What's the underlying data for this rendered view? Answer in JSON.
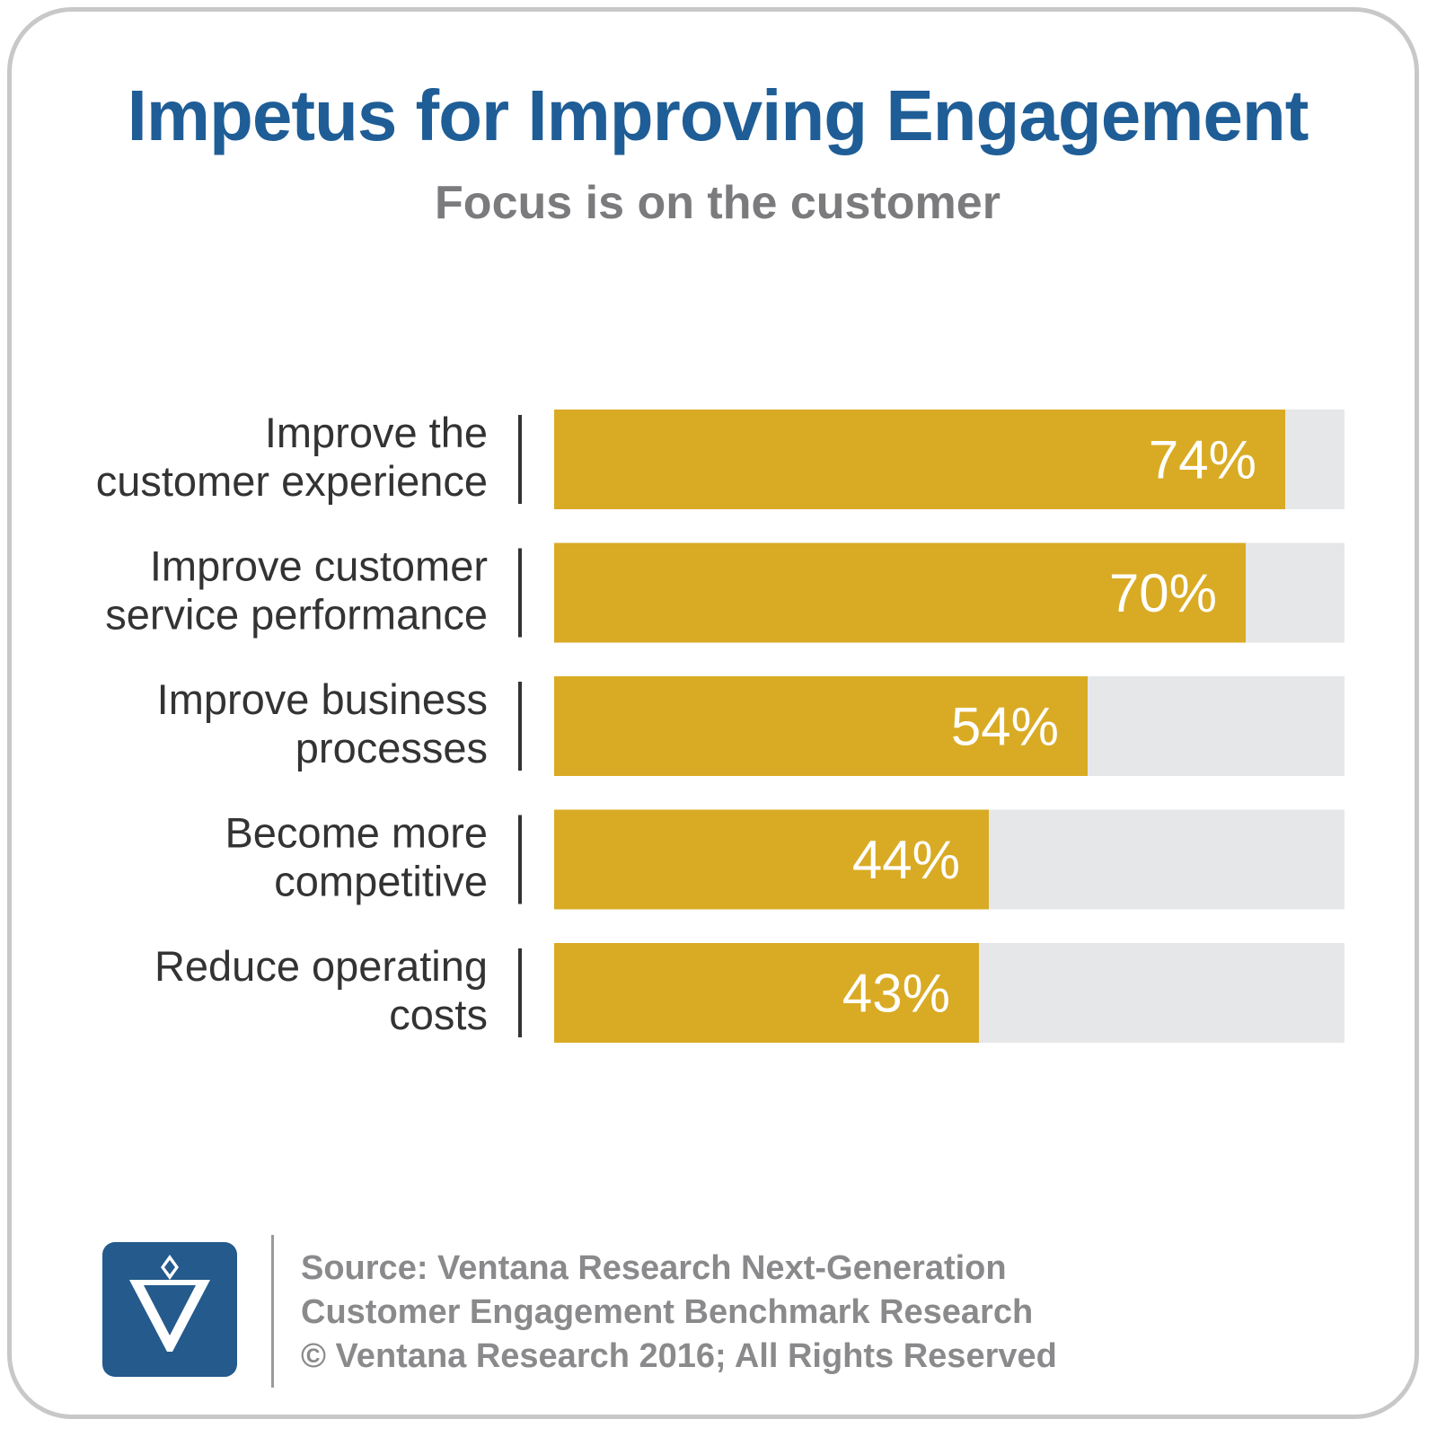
{
  "title": "Impetus for Improving Engagement",
  "subtitle": "Focus is on the customer",
  "chart_data": {
    "type": "bar",
    "orientation": "horizontal",
    "categories": [
      [
        "Improve the",
        "customer experience"
      ],
      [
        "Improve customer",
        "service performance"
      ],
      [
        "Improve business",
        "processes"
      ],
      [
        "Become more",
        "competitive"
      ],
      [
        "Reduce operating",
        "costs"
      ]
    ],
    "values": [
      74,
      70,
      54,
      44,
      43
    ],
    "value_labels": [
      "74%",
      "70%",
      "54%",
      "44%",
      "43%"
    ],
    "xlim": [
      0,
      80
    ],
    "bar_color": "#d9ab24",
    "track_color": "#e6e7e8",
    "grid": false
  },
  "footer": {
    "source_lines": [
      "Source: Ventana Research Next-Generation",
      "Customer Engagement Benchmark Research",
      "© Ventana Research 2016; All Rights Reserved"
    ]
  },
  "colors": {
    "title": "#1f5d96",
    "subtitle": "#7b7b7e",
    "logo_bg": "#245a8c"
  },
  "logo": {
    "icon": "ventana-v-logo-icon"
  }
}
